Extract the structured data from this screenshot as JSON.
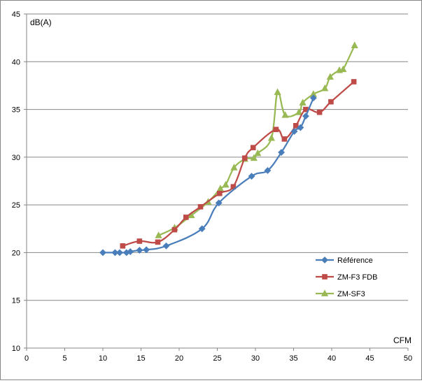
{
  "chart_data": {
    "type": "line",
    "title": "",
    "xlabel": "CFM",
    "ylabel": "dB(A)",
    "xlim": [
      0,
      50
    ],
    "ylim": [
      10,
      45
    ],
    "xticks": [
      "0",
      "5",
      "10",
      "15",
      "20",
      "25",
      "30",
      "35",
      "40",
      "45",
      "50"
    ],
    "yticks": [
      "10",
      "15",
      "20",
      "25",
      "30",
      "35",
      "40",
      "45"
    ],
    "grid": "horizontal major",
    "legend_position": "right",
    "series": [
      {
        "name": "Référence",
        "color": "#4A7EBB",
        "marker": "diamond",
        "points": [
          [
            10.0,
            20.0
          ],
          [
            11.6,
            20.0
          ],
          [
            12.2,
            20.0
          ],
          [
            13.1,
            20.0
          ],
          [
            13.6,
            20.1
          ],
          [
            14.8,
            20.25
          ],
          [
            15.7,
            20.3
          ],
          [
            18.3,
            20.7
          ],
          [
            23.0,
            22.5
          ],
          [
            25.2,
            25.2
          ],
          [
            29.5,
            28.0
          ],
          [
            31.6,
            28.6
          ],
          [
            33.4,
            30.5
          ],
          [
            35.1,
            32.7
          ],
          [
            35.9,
            33.1
          ],
          [
            36.6,
            34.3
          ],
          [
            37.6,
            36.2
          ]
        ]
      },
      {
        "name": "ZM-F3 FDB",
        "color": "#BE4B48",
        "marker": "square",
        "points": [
          [
            12.6,
            20.7
          ],
          [
            14.8,
            21.2
          ],
          [
            17.2,
            21.1
          ],
          [
            19.4,
            22.4
          ],
          [
            20.9,
            23.7
          ],
          [
            22.8,
            24.8
          ],
          [
            25.3,
            26.2
          ],
          [
            27.1,
            26.9
          ],
          [
            28.6,
            29.9
          ],
          [
            29.7,
            31.0
          ],
          [
            32.7,
            32.9
          ],
          [
            33.8,
            31.9
          ],
          [
            35.3,
            33.3
          ],
          [
            36.6,
            35.0
          ],
          [
            38.4,
            34.7
          ],
          [
            39.9,
            35.8
          ],
          [
            42.9,
            37.9
          ]
        ]
      },
      {
        "name": "ZM-SF3",
        "color": "#98B954",
        "marker": "triangle",
        "points": [
          [
            17.3,
            21.8
          ],
          [
            19.4,
            22.6
          ],
          [
            21.6,
            23.9
          ],
          [
            23.8,
            25.3
          ],
          [
            25.4,
            26.7
          ],
          [
            26.1,
            27.1
          ],
          [
            27.2,
            28.9
          ],
          [
            28.6,
            29.8
          ],
          [
            29.8,
            29.9
          ],
          [
            30.3,
            30.4
          ],
          [
            32.1,
            32.0
          ],
          [
            32.9,
            36.8
          ],
          [
            33.9,
            34.4
          ],
          [
            35.7,
            34.7
          ],
          [
            36.2,
            35.7
          ],
          [
            37.6,
            36.6
          ],
          [
            39.1,
            37.2
          ],
          [
            39.8,
            38.4
          ],
          [
            41.0,
            39.1
          ],
          [
            41.5,
            39.2
          ],
          [
            43.0,
            41.7
          ]
        ]
      }
    ]
  }
}
